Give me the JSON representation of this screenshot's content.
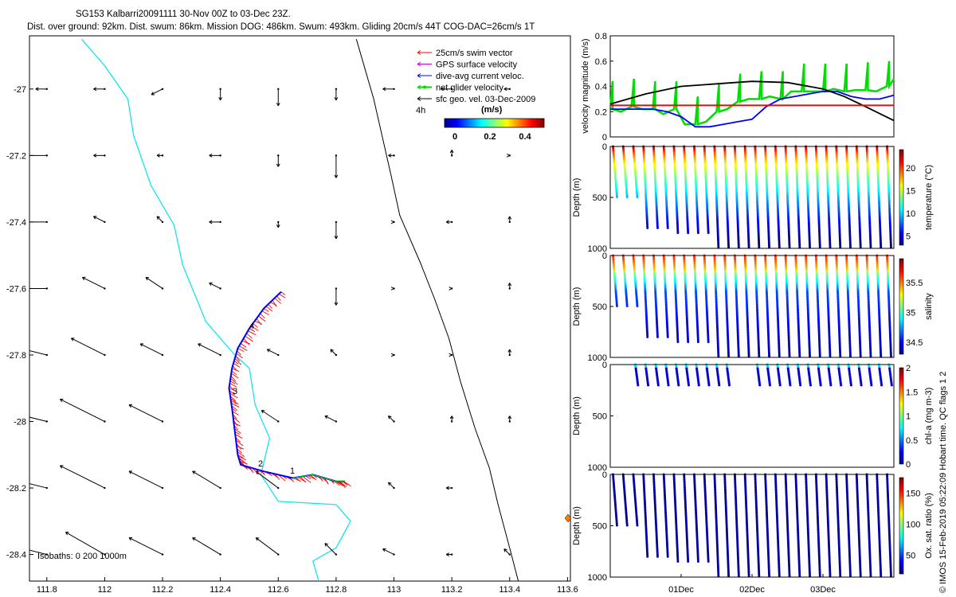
{
  "header": {
    "line1": "SG153 Kalbarri20091111 30-Nov 00Z to 03-Dec 23Z.",
    "line2": "Dist. over ground: 92km. Dist. swum: 86km. Mission DOG: 486km. Swum: 493km. Gliding 20cm/s 44T COG-DAC=26cm/s 1T"
  },
  "legend": {
    "items": [
      {
        "label": "25cm/s swim vector",
        "color": "#ff0000"
      },
      {
        "label": "GPS surface velocity",
        "color": "#cc00cc"
      },
      {
        "label": "dive-avg current veloc.",
        "color": "#0000ff"
      },
      {
        "label": "net glider velocity",
        "color": "#00dd00"
      },
      {
        "label": "sfc geo. vel. 03-Dec-2009",
        "color": "#000000"
      }
    ],
    "interval_label": "4h",
    "colorbar_title": "(m/s)",
    "colorbar_ticks": [
      "0",
      "0.2",
      "0.4"
    ]
  },
  "footer": {
    "isobaths": "Isobaths: 0   200  1000m",
    "credit": "© IMOS 15-Feb-2019 05:22:09 Hobart time. QC flags 1  2"
  },
  "chart_data": [
    {
      "type": "scatter",
      "name": "track-map",
      "x_ticks": [
        "111.8",
        "112",
        "112.2",
        "112.4",
        "112.6",
        "112.8",
        "113",
        "113.2",
        "113.4",
        "113.6"
      ],
      "y_ticks": [
        "-27",
        "-27.2",
        "-27.4",
        "-27.6",
        "-27.8",
        "-28",
        "-28.2",
        "-28.4"
      ],
      "xlim": [
        111.74,
        113.61
      ],
      "ylim": [
        -28.48,
        -26.84
      ],
      "track_labels": [
        "4",
        "3",
        "2",
        "1"
      ],
      "glider_track": [
        [
          112.61,
          -27.61
        ],
        [
          112.55,
          -27.66
        ],
        [
          112.5,
          -27.72
        ],
        [
          112.46,
          -27.78
        ],
        [
          112.44,
          -27.84
        ],
        [
          112.43,
          -27.9
        ],
        [
          112.44,
          -27.96
        ],
        [
          112.45,
          -28.03
        ],
        [
          112.46,
          -28.1
        ],
        [
          112.47,
          -28.13
        ],
        [
          112.55,
          -28.15
        ],
        [
          112.65,
          -28.17
        ],
        [
          112.72,
          -28.16
        ],
        [
          112.8,
          -28.18
        ],
        [
          112.83,
          -28.18
        ]
      ],
      "coastline": [
        [
          111.92,
          -26.85
        ],
        [
          112.0,
          -26.93
        ],
        [
          112.08,
          -27.03
        ],
        [
          112.1,
          -27.14
        ],
        [
          112.16,
          -27.29
        ],
        [
          112.24,
          -27.41
        ],
        [
          112.27,
          -27.53
        ],
        [
          112.35,
          -27.7
        ],
        [
          112.45,
          -27.8
        ],
        [
          112.5,
          -27.84
        ],
        [
          112.52,
          -27.95
        ],
        [
          112.57,
          -28.05
        ],
        [
          112.54,
          -28.16
        ],
        [
          112.6,
          -28.24
        ],
        [
          112.8,
          -28.25
        ],
        [
          112.85,
          -28.3
        ],
        [
          112.8,
          -28.38
        ],
        [
          112.72,
          -28.42
        ],
        [
          112.74,
          -28.48
        ]
      ],
      "isobath_1000": [
        [
          112.87,
          -26.85
        ],
        [
          112.93,
          -27.03
        ],
        [
          112.99,
          -27.26
        ],
        [
          113.02,
          -27.38
        ],
        [
          113.09,
          -27.52
        ],
        [
          113.14,
          -27.63
        ],
        [
          113.19,
          -27.75
        ],
        [
          113.23,
          -27.88
        ],
        [
          113.28,
          -28.02
        ],
        [
          113.33,
          -28.14
        ],
        [
          113.36,
          -28.25
        ],
        [
          113.4,
          -28.38
        ],
        [
          113.43,
          -28.48
        ]
      ],
      "geo_vectors": [
        {
          "lon": 111.8,
          "lat": -27.0,
          "u": -0.02,
          "v": 0.0
        },
        {
          "lon": 112.0,
          "lat": -27.0,
          "u": -0.02,
          "v": 0.0
        },
        {
          "lon": 112.2,
          "lat": -27.0,
          "u": -0.02,
          "v": -0.01
        },
        {
          "lon": 112.4,
          "lat": -27.0,
          "u": 0.0,
          "v": -0.02
        },
        {
          "lon": 112.6,
          "lat": -27.0,
          "u": 0.0,
          "v": -0.03
        },
        {
          "lon": 112.8,
          "lat": -27.0,
          "u": 0.0,
          "v": -0.02
        },
        {
          "lon": 113.0,
          "lat": -27.0,
          "u": -0.02,
          "v": 0.0
        },
        {
          "lon": 113.2,
          "lat": -27.0,
          "u": -0.02,
          "v": 0.0
        },
        {
          "lon": 113.4,
          "lat": -27.0,
          "u": -0.01,
          "v": 0.0
        },
        {
          "lon": 111.8,
          "lat": -27.2,
          "u": -0.04,
          "v": 0.0
        },
        {
          "lon": 112.0,
          "lat": -27.2,
          "u": -0.02,
          "v": 0.0
        },
        {
          "lon": 112.2,
          "lat": -27.2,
          "u": -0.01,
          "v": 0.0
        },
        {
          "lon": 112.4,
          "lat": -27.2,
          "u": -0.02,
          "v": 0.0
        },
        {
          "lon": 112.6,
          "lat": -27.2,
          "u": 0.0,
          "v": -0.02
        },
        {
          "lon": 112.8,
          "lat": -27.2,
          "u": 0.0,
          "v": -0.04
        },
        {
          "lon": 113.0,
          "lat": -27.2,
          "u": -0.01,
          "v": 0.0
        },
        {
          "lon": 113.2,
          "lat": -27.2,
          "u": 0.0,
          "v": 0.01
        },
        {
          "lon": 113.4,
          "lat": -27.2,
          "u": 0.0,
          "v": 0.0
        },
        {
          "lon": 111.8,
          "lat": -27.4,
          "u": -0.04,
          "v": 0.0
        },
        {
          "lon": 112.0,
          "lat": -27.4,
          "u": -0.02,
          "v": 0.01
        },
        {
          "lon": 112.2,
          "lat": -27.4,
          "u": -0.01,
          "v": 0.01
        },
        {
          "lon": 112.4,
          "lat": -27.4,
          "u": -0.02,
          "v": 0.0
        },
        {
          "lon": 112.6,
          "lat": -27.4,
          "u": 0.0,
          "v": -0.01
        },
        {
          "lon": 112.8,
          "lat": -27.4,
          "u": 0.0,
          "v": -0.03
        },
        {
          "lon": 113.0,
          "lat": -27.4,
          "u": 0.0,
          "v": 0.0
        },
        {
          "lon": 113.2,
          "lat": -27.4,
          "u": -0.01,
          "v": 0.0
        },
        {
          "lon": 113.4,
          "lat": -27.4,
          "u": 0.0,
          "v": 0.01
        },
        {
          "lon": 111.8,
          "lat": -27.6,
          "u": -0.04,
          "v": 0.0
        },
        {
          "lon": 112.0,
          "lat": -27.6,
          "u": -0.04,
          "v": 0.02
        },
        {
          "lon": 112.2,
          "lat": -27.6,
          "u": -0.03,
          "v": 0.02
        },
        {
          "lon": 112.4,
          "lat": -27.6,
          "u": -0.02,
          "v": 0.01
        },
        {
          "lon": 112.8,
          "lat": -27.6,
          "u": 0.0,
          "v": -0.03
        },
        {
          "lon": 113.0,
          "lat": -27.6,
          "u": 0.0,
          "v": 0.0
        },
        {
          "lon": 113.2,
          "lat": -27.6,
          "u": 0.0,
          "v": 0.0
        },
        {
          "lon": 113.4,
          "lat": -27.6,
          "u": 0.0,
          "v": 0.01
        },
        {
          "lon": 111.8,
          "lat": -27.8,
          "u": -0.04,
          "v": 0.01
        },
        {
          "lon": 112.0,
          "lat": -27.8,
          "u": -0.06,
          "v": 0.03
        },
        {
          "lon": 112.2,
          "lat": -27.8,
          "u": -0.04,
          "v": 0.02
        },
        {
          "lon": 112.4,
          "lat": -27.8,
          "u": -0.04,
          "v": 0.02
        },
        {
          "lon": 112.6,
          "lat": -27.8,
          "u": -0.02,
          "v": 0.01
        },
        {
          "lon": 112.8,
          "lat": -27.8,
          "u": -0.01,
          "v": 0.01
        },
        {
          "lon": 113.0,
          "lat": -27.8,
          "u": 0.0,
          "v": 0.0
        },
        {
          "lon": 113.2,
          "lat": -27.8,
          "u": 0.0,
          "v": 0.0
        },
        {
          "lon": 113.4,
          "lat": -27.8,
          "u": 0.0,
          "v": 0.01
        },
        {
          "lon": 111.8,
          "lat": -28.0,
          "u": -0.04,
          "v": 0.01
        },
        {
          "lon": 112.0,
          "lat": -28.0,
          "u": -0.08,
          "v": 0.04
        },
        {
          "lon": 112.2,
          "lat": -28.0,
          "u": -0.06,
          "v": 0.03
        },
        {
          "lon": 112.6,
          "lat": -28.0,
          "u": -0.03,
          "v": 0.02
        },
        {
          "lon": 112.8,
          "lat": -28.0,
          "u": -0.02,
          "v": 0.01
        },
        {
          "lon": 113.0,
          "lat": -28.0,
          "u": -0.01,
          "v": 0.01
        },
        {
          "lon": 113.2,
          "lat": -28.0,
          "u": 0.0,
          "v": 0.01
        },
        {
          "lon": 113.4,
          "lat": -28.0,
          "u": 0.0,
          "v": 0.01
        },
        {
          "lon": 111.8,
          "lat": -28.2,
          "u": -0.04,
          "v": 0.01
        },
        {
          "lon": 112.0,
          "lat": -28.2,
          "u": -0.08,
          "v": 0.04
        },
        {
          "lon": 112.2,
          "lat": -28.2,
          "u": -0.06,
          "v": 0.03
        },
        {
          "lon": 112.4,
          "lat": -28.2,
          "u": -0.05,
          "v": 0.03
        },
        {
          "lon": 112.6,
          "lat": -28.2,
          "u": -0.04,
          "v": 0.03
        },
        {
          "lon": 113.0,
          "lat": -28.2,
          "u": -0.01,
          "v": 0.01
        },
        {
          "lon": 113.2,
          "lat": -28.2,
          "u": -0.01,
          "v": 0.0
        },
        {
          "lon": 111.8,
          "lat": -28.4,
          "u": -0.04,
          "v": 0.01
        },
        {
          "lon": 112.0,
          "lat": -28.4,
          "u": -0.07,
          "v": 0.04
        },
        {
          "lon": 112.2,
          "lat": -28.4,
          "u": -0.06,
          "v": 0.03
        },
        {
          "lon": 112.4,
          "lat": -28.4,
          "u": -0.05,
          "v": 0.03
        },
        {
          "lon": 112.6,
          "lat": -28.4,
          "u": -0.04,
          "v": 0.03
        },
        {
          "lon": 112.8,
          "lat": -28.4,
          "u": -0.02,
          "v": 0.02
        },
        {
          "lon": 113.0,
          "lat": -28.4,
          "u": -0.02,
          "v": 0.01
        },
        {
          "lon": 113.2,
          "lat": -28.4,
          "u": -0.01,
          "v": 0.0
        },
        {
          "lon": 113.4,
          "lat": -28.4,
          "u": -0.01,
          "v": 0.01
        }
      ]
    },
    {
      "type": "line",
      "name": "velocity-magnitude",
      "ylabel": "velocity magnitude (m/s)",
      "y_ticks": [
        "0",
        "0.2",
        "0.4",
        "0.6",
        "0.8"
      ],
      "ylim": [
        0,
        0.8
      ],
      "xlim": [
        0,
        4
      ],
      "series": [
        {
          "color": "#00dd00",
          "x": [
            0,
            0.15,
            0.3,
            0.45,
            0.6,
            0.75,
            0.9,
            1.05,
            1.2,
            1.35,
            1.5,
            1.65,
            1.8,
            1.95,
            2.1,
            2.25,
            2.4,
            2.55,
            2.7,
            2.85,
            3.0,
            3.15,
            3.3,
            3.45,
            3.6,
            3.75,
            3.9,
            4.0
          ],
          "y": [
            0.22,
            0.2,
            0.24,
            0.22,
            0.22,
            0.18,
            0.22,
            0.1,
            0.1,
            0.12,
            0.2,
            0.22,
            0.28,
            0.3,
            0.3,
            0.32,
            0.3,
            0.36,
            0.36,
            0.36,
            0.36,
            0.38,
            0.36,
            0.37,
            0.37,
            0.36,
            0.4,
            0.46
          ]
        },
        {
          "color": "#0000ff",
          "x": [
            0,
            0.3,
            0.6,
            0.8,
            1.0,
            1.2,
            1.4,
            1.6,
            1.8,
            2.0,
            2.2,
            2.4,
            2.6,
            2.8,
            3.0,
            3.2,
            3.4,
            3.6,
            3.8,
            4.0
          ],
          "y": [
            0.22,
            0.22,
            0.22,
            0.2,
            0.16,
            0.08,
            0.08,
            0.1,
            0.12,
            0.14,
            0.24,
            0.3,
            0.32,
            0.34,
            0.36,
            0.36,
            0.32,
            0.3,
            0.3,
            0.33
          ]
        },
        {
          "color": "#000000",
          "x": [
            0,
            0.5,
            1.0,
            1.5,
            2.0,
            2.5,
            3.0,
            3.3,
            3.6,
            4.0
          ],
          "y": [
            0.26,
            0.34,
            0.4,
            0.42,
            0.44,
            0.43,
            0.38,
            0.32,
            0.24,
            0.13
          ]
        },
        {
          "color": "#ff0000",
          "x": [
            0,
            4
          ],
          "y": [
            0.25,
            0.25
          ]
        }
      ]
    },
    {
      "type": "scatter",
      "name": "temperature-section",
      "ylabel": "Depth (m)",
      "colorbar_label": "temperature (°C)",
      "colorbar_ticks": [
        "5",
        "10",
        "15",
        "20"
      ],
      "clim": [
        3,
        24
      ],
      "y_ticks": [
        "0",
        "500",
        "1000"
      ],
      "ylim": [
        1000,
        0
      ]
    },
    {
      "type": "scatter",
      "name": "salinity-section",
      "ylabel": "Depth (m)",
      "colorbar_label": "salinity",
      "colorbar_ticks": [
        "34.5",
        "35",
        "35.5"
      ],
      "clim": [
        34.3,
        35.9
      ],
      "y_ticks": [
        "0",
        "500",
        "1000"
      ],
      "ylim": [
        1000,
        0
      ]
    },
    {
      "type": "scatter",
      "name": "chla-section",
      "ylabel": "Depth (m)",
      "colorbar_label": "chl-a (mg m-3)",
      "colorbar_ticks": [
        "0",
        "0.5",
        "1",
        "1.5",
        "2"
      ],
      "clim": [
        0,
        2
      ],
      "y_ticks": [
        "0",
        "500",
        "1000"
      ],
      "ylim": [
        1000,
        0
      ]
    },
    {
      "type": "scatter",
      "name": "oxygen-section",
      "ylabel": "Depth (m)",
      "colorbar_label": "Ox. sat. ratio (%)",
      "colorbar_ticks": [
        "50",
        "100",
        "150"
      ],
      "clim": [
        20,
        175
      ],
      "y_ticks": [
        "0",
        "500",
        "1000"
      ],
      "ylim": [
        1000,
        0
      ],
      "x_ticks": [
        "01Dec",
        "02Dec",
        "03Dec"
      ]
    }
  ]
}
